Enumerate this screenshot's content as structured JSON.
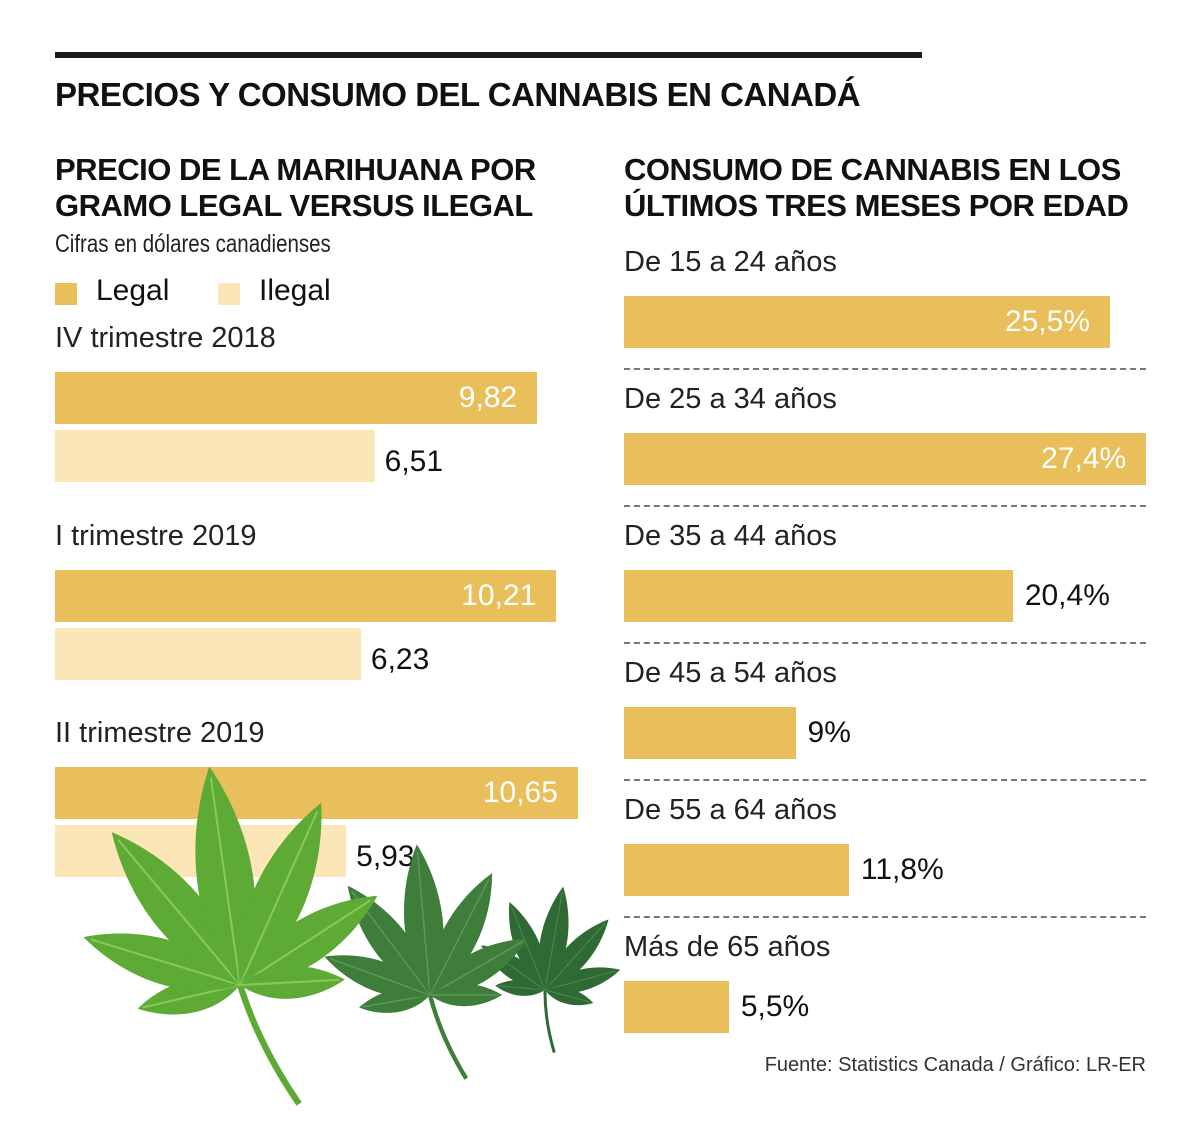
{
  "title": "PRECIOS Y CONSUMO DEL CANNABIS EN CANADÁ",
  "colors": {
    "legal": "#E8BF5A",
    "ilegal": "#FBE6B7",
    "leaf_light": "#5DAA34",
    "leaf_dark": "#3E7D3A"
  },
  "chart_data": [
    {
      "type": "bar",
      "orientation": "horizontal",
      "title": "PRECIO DE LA MARIHUANA POR GRAMO LEGAL VERSUS ILEGAL",
      "title_lines": [
        "PRECIO DE LA MARIHUANA POR",
        "GRAMO LEGAL VERSUS ILEGAL"
      ],
      "subtitle": "Cifras en dólares canadienses",
      "legend": [
        "Legal",
        "Ilegal"
      ],
      "categories": [
        "IV trimestre 2018",
        "I trimestre 2019",
        "II trimestre 2019"
      ],
      "series": [
        {
          "name": "Legal",
          "values": [
            9.82,
            10.21,
            10.65
          ],
          "labels": [
            "9,82",
            "10,21",
            "10,65"
          ]
        },
        {
          "name": "Ilegal",
          "values": [
            6.51,
            6.23,
            5.93
          ],
          "labels": [
            "6,51",
            "6,23",
            "5,93"
          ]
        }
      ]
    },
    {
      "type": "bar",
      "orientation": "horizontal",
      "title": "CONSUMO DE CANNABIS EN LOS ÚLTIMOS TRES MESES POR EDAD",
      "title_lines": [
        "CONSUMO DE CANNABIS EN LOS",
        "ÚLTIMOS TRES MESES POR EDAD"
      ],
      "categories": [
        "De 15 a 24 años",
        "De 25 a 34 años",
        "De 35 a 44 años",
        "De 45 a 54 años",
        "De 55 a 64 años",
        "Más de 65 años"
      ],
      "values": [
        25.5,
        27.4,
        20.4,
        9,
        11.8,
        5.5
      ],
      "labels": [
        "25,5%",
        "27,4%",
        "20,4%",
        "9%",
        "11,8%",
        "5,5%"
      ]
    }
  ],
  "source": "Fuente: Statistics Canada / Gráfico: LR-ER"
}
